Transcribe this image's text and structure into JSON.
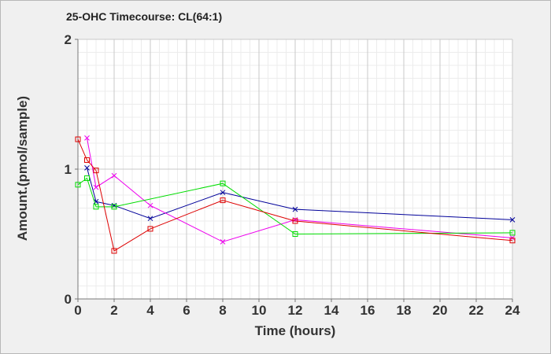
{
  "chart_data": {
    "type": "line",
    "title": "25-OHC Timecourse: CL(64:1)",
    "xlabel": "Time (hours)",
    "ylabel": "Amount.(pmol/sample)",
    "xlim": [
      0,
      24
    ],
    "ylim": [
      0,
      2
    ],
    "x_ticks": [
      0,
      2,
      4,
      6,
      8,
      10,
      12,
      14,
      16,
      18,
      20,
      22,
      24
    ],
    "y_ticks": [
      0,
      1,
      2
    ],
    "grid": true,
    "legend": "none",
    "series": [
      {
        "color": "#000099",
        "marker": "x",
        "x": [
          0.5,
          1,
          2,
          4,
          8,
          12,
          24
        ],
        "y": [
          1.01,
          0.75,
          0.72,
          0.62,
          0.82,
          0.69,
          0.61
        ]
      },
      {
        "color": "#ee00ee",
        "marker": "x",
        "x": [
          0.5,
          1,
          2,
          4,
          8,
          12,
          24
        ],
        "y": [
          1.24,
          0.86,
          0.95,
          0.72,
          0.44,
          0.61,
          0.47
        ]
      },
      {
        "color": "#00dd00",
        "marker": "square",
        "x": [
          0,
          0.5,
          1,
          2,
          8,
          12,
          24
        ],
        "y": [
          0.88,
          0.93,
          0.71,
          0.71,
          0.89,
          0.5,
          0.51
        ]
      },
      {
        "color": "#dd0000",
        "marker": "square",
        "x": [
          0,
          0.5,
          1,
          2,
          4,
          8,
          12,
          24
        ],
        "y": [
          1.23,
          1.07,
          0.99,
          0.37,
          0.54,
          0.76,
          0.6,
          0.45
        ]
      }
    ]
  }
}
